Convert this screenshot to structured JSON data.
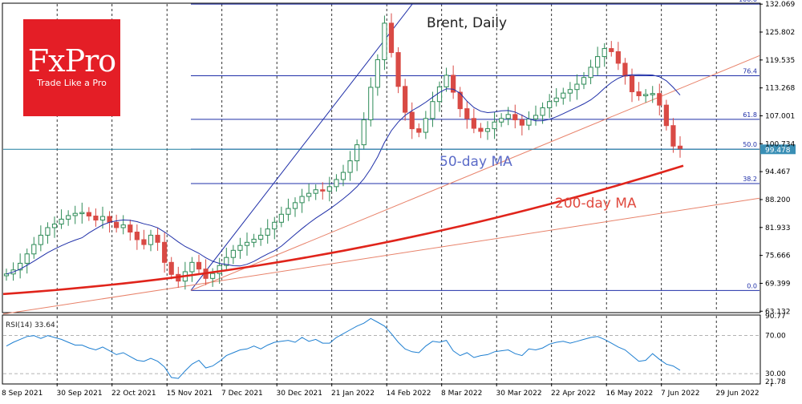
{
  "brand": {
    "logo_text": "FxPro",
    "tagline": "Trade Like a Pro",
    "color": "#e41e26"
  },
  "chart_data": [
    {
      "type": "candlestick",
      "title": "Brent, Daily",
      "ylim": [
        63.0,
        132.1
      ],
      "y_ticks": [
        "132.069",
        "125.802",
        "119.535",
        "113.268",
        "107.001",
        "100.734",
        "94.467",
        "88.200",
        "81.933",
        "75.666",
        "69.399",
        "63.132"
      ],
      "current_price_label": "99.478",
      "current_price": 99.478,
      "x_ticks": [
        "8 Sep 2021",
        "30 Sep 2021",
        "22 Oct 2021",
        "15 Nov 2021",
        "7 Dec 2021",
        "30 Dec 2021",
        "21 Jan 2022",
        "14 Feb 2022",
        "8 Mar 2022",
        "30 Mar 2022",
        "22 Apr 2022",
        "16 May 2022",
        "7 Jun 2022",
        "29 Jun 2022"
      ],
      "fibonacci": {
        "levels": [
          {
            "label": "100.0",
            "price": 132.069
          },
          {
            "label": "76.4",
            "price": 116.0
          },
          {
            "label": "61.8",
            "price": 106.2
          },
          {
            "label": "50.0",
            "price": 99.5
          },
          {
            "label": "38.2",
            "price": 91.8
          },
          {
            "label": "0.0",
            "price": 67.8
          }
        ]
      },
      "annotations": {
        "ma50_label": "50-day MA",
        "ma200_label": "200-day MA"
      },
      "colors": {
        "up": "#2e8b57",
        "down": "#d94a45",
        "ma50": "#1f2fa8",
        "ma200": "#e0241b",
        "fib": "#1f2fa8",
        "trend": "#e8826a",
        "price_line": "#1f7fa0"
      },
      "candles_per_label": 16,
      "price_path": [
        71.5,
        72.4,
        73.9,
        76.0,
        78.1,
        80.2,
        81.9,
        82.7,
        83.8,
        84.6,
        85.1,
        85.3,
        84.5,
        83.6,
        84.4,
        83.1,
        81.9,
        82.5,
        80.9,
        79.2,
        78.1,
        80.2,
        78.6,
        74.1,
        71.4,
        69.9,
        72.0,
        74.1,
        72.6,
        70.5,
        71.6,
        73.4,
        75.2,
        76.8,
        77.9,
        78.6,
        79.3,
        80.2,
        81.6,
        83.1,
        84.9,
        86.2,
        87.5,
        88.9,
        89.6,
        90.4,
        90.1,
        91.1,
        92.7,
        94.3,
        96.9,
        100.5,
        106.1,
        113.4,
        119.6,
        127.8,
        121.2,
        113.6,
        107.8,
        104.1,
        103.3,
        106.4,
        110.2,
        113.5,
        116.1,
        112.3,
        108.6,
        106.4,
        104.2,
        103.5,
        104.1,
        105.6,
        106.4,
        107.3,
        106.1,
        104.9,
        106.3,
        107.1,
        108.8,
        110.2,
        111.0,
        112.1,
        112.9,
        114.1,
        115.6,
        117.9,
        120.3,
        122.1,
        121.4,
        118.8,
        115.9,
        112.4,
        111.5,
        111.8,
        112.0,
        109.4,
        104.8,
        100.2,
        99.5
      ]
    },
    {
      "type": "line",
      "title": "RSI(14) 33.64",
      "ylim": [
        20.0,
        90.77
      ],
      "y_ticks": [
        "90.77",
        "70.00",
        "30.00",
        "21.78"
      ],
      "color": "#1e7fd1",
      "values": [
        59,
        63,
        66,
        69,
        70,
        67,
        70,
        68,
        66,
        63,
        60,
        60,
        57,
        55,
        58,
        54,
        50,
        52,
        48,
        44,
        43,
        46,
        43,
        37,
        26,
        25,
        33,
        40,
        44,
        36,
        38,
        43,
        49,
        52,
        55,
        56,
        59,
        56,
        60,
        63,
        64,
        65,
        63,
        68,
        64,
        66,
        62,
        62,
        68,
        72,
        76,
        80,
        83,
        88,
        84,
        80,
        72,
        63,
        56,
        53,
        52,
        59,
        64,
        63,
        65,
        54,
        49,
        52,
        47,
        49,
        50,
        53,
        54,
        55,
        51,
        49,
        56,
        55,
        57,
        61,
        63,
        64,
        62,
        64,
        66,
        68,
        69,
        66,
        62,
        58,
        55,
        49,
        43,
        44,
        51,
        45,
        40,
        38,
        33.6
      ]
    }
  ]
}
